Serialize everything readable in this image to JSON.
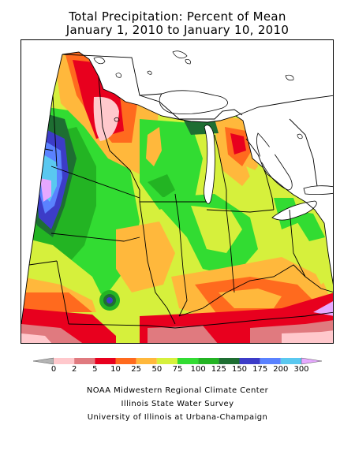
{
  "header": {
    "title_line1": "Total Precipitation: Percent of Mean",
    "title_line2": "January 1, 2010 to January 10, 2010"
  },
  "legend": {
    "labels": [
      "0",
      "2",
      "5",
      "10",
      "25",
      "50",
      "75",
      "100",
      "125",
      "150",
      "175",
      "200",
      "300"
    ],
    "colors": [
      "#b4b4b4",
      "#ffc8cc",
      "#e07a7f",
      "#e8001e",
      "#ff6a1e",
      "#ffb83c",
      "#d6f03c",
      "#32dc32",
      "#23b423",
      "#1e6e32",
      "#3c3cc8",
      "#5a82ff",
      "#5ac8f0",
      "#e6a8ff"
    ]
  },
  "credits": {
    "line1": "NOAA Midwestern Regional Climate Center",
    "line2": "Illinois State Water Survey",
    "line3": "University of Illinois at Urbana-Champaign"
  }
}
